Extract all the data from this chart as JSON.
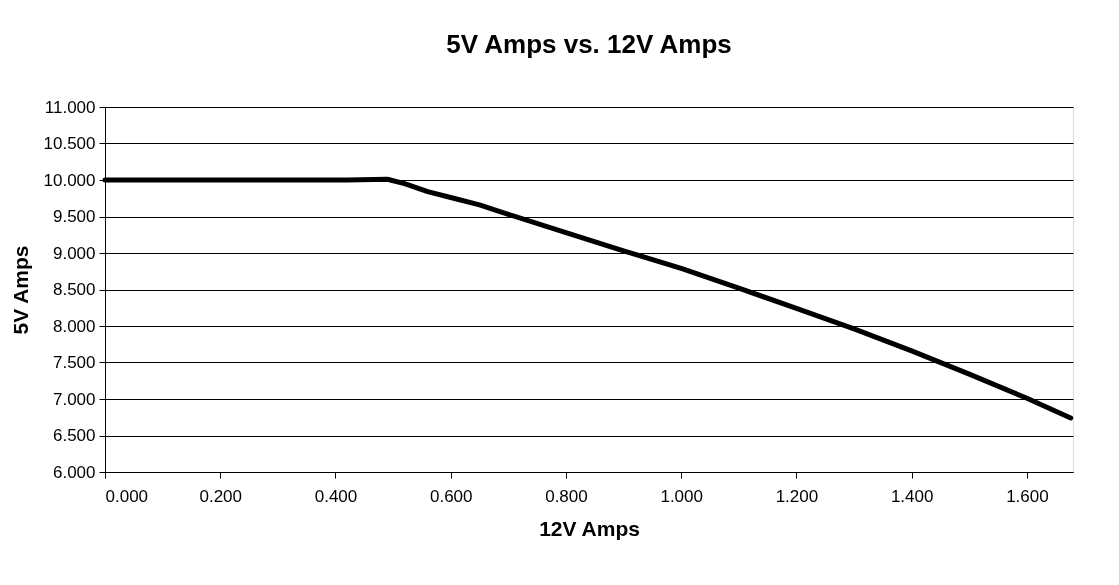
{
  "chart_data": {
    "type": "line",
    "title": "5V Amps vs. 12V Amps",
    "xlabel": "12V Amps",
    "ylabel": "5V Amps",
    "x": [
      0,
      0.42,
      0.49,
      0.52,
      0.56,
      0.6,
      0.65,
      0.7,
      0.8,
      0.9,
      1.0,
      1.1,
      1.2,
      1.3,
      1.35,
      1.4,
      1.5,
      1.6,
      1.676
    ],
    "series": [
      {
        "color": "#000000",
        "values": [
          10.0,
          10.0,
          10.01,
          9.95,
          9.84,
          9.76,
          9.66,
          9.53,
          9.28,
          9.03,
          8.79,
          8.52,
          8.24,
          7.96,
          7.81,
          7.66,
          7.34,
          7.01,
          6.74
        ]
      }
    ],
    "xlim": [
      0,
      1.68
    ],
    "xticks": [
      {
        "value": 0,
        "label": "0.000"
      },
      {
        "value": 0.2,
        "label": "0.200"
      },
      {
        "value": 0.4,
        "label": "0.400"
      },
      {
        "value": 0.6,
        "label": "0.600"
      },
      {
        "value": 0.8,
        "label": "0.800"
      },
      {
        "value": 1.0,
        "label": "1.000"
      },
      {
        "value": 1.2,
        "label": "1.200"
      },
      {
        "value": 1.4,
        "label": "1.400"
      },
      {
        "value": 1.6,
        "label": "1.600"
      }
    ],
    "ylim": [
      6,
      11
    ],
    "yticks": [
      {
        "value": 6,
        "label": "6.000"
      },
      {
        "value": 6.5,
        "label": "6.500"
      },
      {
        "value": 7,
        "label": "7.000"
      },
      {
        "value": 7.5,
        "label": "7.500"
      },
      {
        "value": 8,
        "label": "8.000"
      },
      {
        "value": 8.5,
        "label": "8.500"
      },
      {
        "value": 9,
        "label": "9.000"
      },
      {
        "value": 9.5,
        "label": "9.500"
      },
      {
        "value": 10,
        "label": "10.000"
      },
      {
        "value": 10.5,
        "label": "10.500"
      },
      {
        "value": 11,
        "label": "11.000"
      }
    ],
    "grid": "y",
    "marker": "none",
    "line_style": "solid"
  }
}
